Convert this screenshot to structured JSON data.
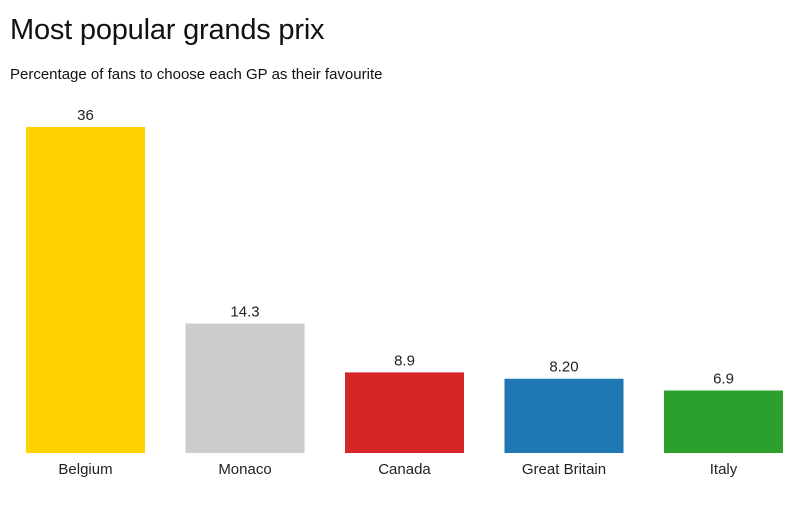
{
  "header": {
    "title": "Most popular grands prix",
    "subtitle": "Percentage of fans to choose each GP as their favourite"
  },
  "chart_data": {
    "type": "bar",
    "title": "Most popular grands prix",
    "subtitle": "Percentage of fans to choose each GP as their favourite",
    "xlabel": "",
    "ylabel": "",
    "ylim": [
      0,
      36
    ],
    "grid": false,
    "legend": "none",
    "categories": [
      "Belgium",
      "Monaco",
      "Canada",
      "Great Britain",
      "Italy"
    ],
    "values": [
      36,
      14.3,
      8.9,
      8.2,
      6.9
    ],
    "data_labels": [
      "36",
      "14.3",
      "8.9",
      "8.20",
      "6.9"
    ],
    "colors": [
      "#FFD200",
      "#CCCCCC",
      "#D62728",
      "#1F77B4",
      "#2CA02C"
    ]
  }
}
